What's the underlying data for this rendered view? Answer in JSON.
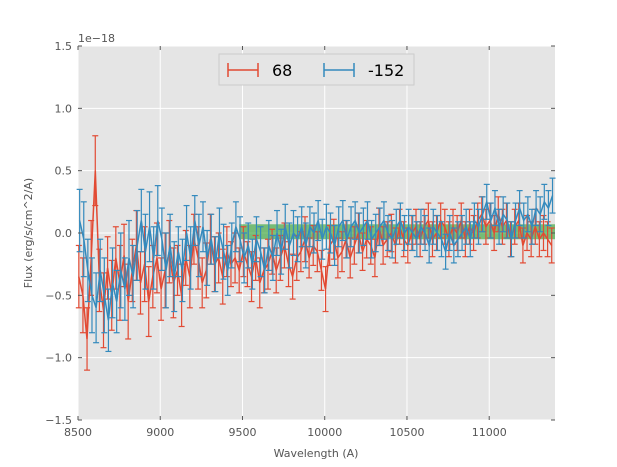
{
  "chart_data": {
    "type": "line",
    "title": "",
    "xlabel": "Wavelength (A)",
    "ylabel": "Flux (erg/s/cm^2/A)",
    "offset_label": "1e−18",
    "xlim": [
      8500,
      11400
    ],
    "ylim": [
      -1.5,
      1.5
    ],
    "x_ticks": [
      8500,
      9000,
      9500,
      10000,
      10500,
      11000
    ],
    "x_tick_labels": [
      "8500",
      "9000",
      "9500",
      "10000",
      "10500",
      "11000"
    ],
    "y_ticks": [
      -1.5,
      -1.0,
      -0.5,
      0.0,
      0.5,
      1.0,
      1.5
    ],
    "y_tick_labels": [
      "−1.5",
      "−1.0",
      "−0.5",
      "0.0",
      "0.5",
      "1.0",
      "1.5"
    ],
    "grid": true,
    "legend_position": "top-center",
    "band": {
      "x_range": [
        9480,
        11400
      ],
      "y_range": [
        -0.05,
        0.07
      ],
      "color": "#2ca02c"
    },
    "series": [
      {
        "name": "68",
        "color": "#e24a33",
        "x": [
          8505,
          8530,
          8555,
          8580,
          8605,
          8630,
          8655,
          8680,
          8705,
          8730,
          8755,
          8780,
          8805,
          8830,
          8855,
          8880,
          8905,
          8930,
          8955,
          8980,
          9005,
          9030,
          9055,
          9080,
          9105,
          9130,
          9155,
          9180,
          9205,
          9230,
          9255,
          9280,
          9305,
          9330,
          9355,
          9380,
          9405,
          9430,
          9455,
          9480,
          9505,
          9530,
          9555,
          9580,
          9605,
          9630,
          9655,
          9680,
          9705,
          9730,
          9755,
          9780,
          9805,
          9830,
          9855,
          9880,
          9905,
          9930,
          9955,
          9980,
          10005,
          10030,
          10055,
          10080,
          10105,
          10130,
          10155,
          10180,
          10205,
          10230,
          10255,
          10280,
          10305,
          10330,
          10355,
          10380,
          10405,
          10430,
          10455,
          10480,
          10505,
          10530,
          10555,
          10580,
          10605,
          10630,
          10655,
          10680,
          10705,
          10730,
          10755,
          10780,
          10805,
          10830,
          10855,
          10880,
          10905,
          10930,
          10955,
          10980,
          11005,
          11030,
          11055,
          11080,
          11105,
          11130,
          11155,
          11180,
          11205,
          11230,
          11255,
          11280,
          11305,
          11330,
          11355,
          11380
        ],
        "y": [
          -0.35,
          -0.5,
          -0.85,
          -0.2,
          0.5,
          -0.38,
          -0.62,
          -0.28,
          -0.5,
          -0.2,
          -0.4,
          -0.18,
          -0.55,
          -0.3,
          -0.1,
          -0.4,
          -0.25,
          -0.55,
          -0.35,
          -0.2,
          -0.45,
          -0.3,
          -0.15,
          -0.4,
          -0.3,
          -0.5,
          -0.2,
          -0.35,
          -0.05,
          -0.2,
          -0.4,
          -0.3,
          -0.05,
          -0.25,
          -0.2,
          -0.35,
          -0.15,
          -0.25,
          -0.2,
          -0.3,
          -0.15,
          -0.25,
          -0.35,
          -0.2,
          -0.4,
          -0.3,
          -0.25,
          -0.15,
          -0.3,
          -0.2,
          -0.1,
          -0.25,
          -0.35,
          -0.2,
          -0.15,
          -0.05,
          -0.2,
          -0.1,
          -0.15,
          -0.3,
          -0.45,
          -0.1,
          -0.05,
          -0.2,
          -0.15,
          -0.05,
          -0.2,
          -0.1,
          0.0,
          -0.15,
          -0.05,
          -0.1,
          -0.2,
          0.05,
          -0.1,
          -0.05,
          0.0,
          -0.1,
          0.05,
          -0.05,
          -0.1,
          0.0,
          0.05,
          -0.05,
          0.05,
          0.1,
          -0.05,
          0.0,
          0.1,
          0.05,
          -0.05,
          0.05,
          0.0,
          0.1,
          -0.05,
          0.05,
          0.0,
          0.1,
          0.15,
          0.05,
          0.1,
          0.0,
          0.15,
          0.05,
          0.1,
          -0.05,
          0.05,
          0.1,
          -0.1,
          0.0,
          -0.05,
          0.05,
          -0.05,
          0.0,
          -0.05,
          -0.1
        ],
        "err": [
          0.25,
          0.3,
          0.25,
          0.3,
          0.28,
          0.25,
          0.3,
          0.25,
          0.28,
          0.25,
          0.3,
          0.25,
          0.3,
          0.25,
          0.28,
          0.25,
          0.3,
          0.28,
          0.25,
          0.28,
          0.25,
          0.3,
          0.25,
          0.28,
          0.2,
          0.25,
          0.22,
          0.25,
          0.2,
          0.25,
          0.2,
          0.22,
          0.2,
          0.22,
          0.2,
          0.22,
          0.2,
          0.18,
          0.2,
          0.18,
          0.2,
          0.18,
          0.2,
          0.18,
          0.2,
          0.18,
          0.2,
          0.18,
          0.18,
          0.18,
          0.18,
          0.18,
          0.18,
          0.18,
          0.16,
          0.18,
          0.16,
          0.16,
          0.16,
          0.16,
          0.18,
          0.16,
          0.16,
          0.16,
          0.16,
          0.15,
          0.16,
          0.15,
          0.16,
          0.15,
          0.15,
          0.15,
          0.15,
          0.15,
          0.15,
          0.14,
          0.15,
          0.14,
          0.14,
          0.14,
          0.14,
          0.14,
          0.14,
          0.14,
          0.14,
          0.14,
          0.14,
          0.14,
          0.14,
          0.14,
          0.14,
          0.14,
          0.14,
          0.14,
          0.14,
          0.14,
          0.14,
          0.14,
          0.14,
          0.14,
          0.14,
          0.14,
          0.14,
          0.14,
          0.14,
          0.14,
          0.14,
          0.14,
          0.14,
          0.14,
          0.14,
          0.14,
          0.14,
          0.14,
          0.14,
          0.14
        ]
      },
      {
        "name": "-152",
        "color": "#348abd",
        "x": [
          8510,
          8535,
          8560,
          8585,
          8610,
          8635,
          8660,
          8685,
          8710,
          8735,
          8760,
          8785,
          8810,
          8835,
          8860,
          8885,
          8910,
          8935,
          8960,
          8985,
          9010,
          9035,
          9060,
          9085,
          9110,
          9135,
          9160,
          9185,
          9210,
          9235,
          9260,
          9285,
          9310,
          9335,
          9360,
          9385,
          9410,
          9435,
          9460,
          9485,
          9510,
          9535,
          9560,
          9585,
          9610,
          9635,
          9660,
          9685,
          9710,
          9735,
          9760,
          9785,
          9810,
          9835,
          9860,
          9885,
          9910,
          9935,
          9960,
          9985,
          10010,
          10035,
          10060,
          10085,
          10110,
          10135,
          10160,
          10185,
          10210,
          10235,
          10260,
          10285,
          10310,
          10335,
          10360,
          10385,
          10410,
          10435,
          10460,
          10485,
          10510,
          10535,
          10560,
          10585,
          10610,
          10635,
          10660,
          10685,
          10710,
          10735,
          10760,
          10785,
          10810,
          10835,
          10860,
          10885,
          10910,
          10935,
          10960,
          10985,
          11010,
          11035,
          11060,
          11085,
          11110,
          11135,
          11160,
          11185,
          11210,
          11235,
          11260,
          11285,
          11310,
          11335,
          11360,
          11385
        ],
        "y": [
          0.1,
          -0.05,
          -0.3,
          -0.5,
          -0.6,
          -0.3,
          -0.5,
          -0.7,
          -0.4,
          -0.55,
          -0.3,
          -0.45,
          -0.2,
          -0.35,
          -0.1,
          0.1,
          -0.15,
          0.05,
          -0.2,
          0.1,
          -0.05,
          -0.3,
          -0.1,
          -0.35,
          -0.15,
          -0.3,
          0.0,
          -0.2,
          0.1,
          -0.1,
          0.05,
          -0.2,
          -0.05,
          -0.25,
          0.0,
          -0.15,
          -0.3,
          -0.1,
          0.05,
          -0.05,
          -0.2,
          -0.1,
          -0.25,
          -0.05,
          -0.15,
          -0.3,
          -0.1,
          -0.2,
          0.0,
          -0.15,
          0.05,
          -0.1,
          0.0,
          -0.05,
          0.05,
          -0.1,
          0.05,
          0.0,
          0.1,
          -0.05,
          0.05,
          0.0,
          -0.1,
          0.05,
          0.1,
          -0.05,
          0.05,
          0.1,
          0.0,
          0.05,
          0.1,
          -0.05,
          0.0,
          0.05,
          0.1,
          0.0,
          -0.05,
          0.05,
          0.1,
          0.0,
          0.05,
          0.0,
          -0.05,
          0.05,
          0.0,
          -0.1,
          0.05,
          0.0,
          -0.05,
          -0.15,
          0.0,
          -0.1,
          -0.05,
          0.0,
          0.05,
          -0.05,
          0.1,
          0.05,
          0.15,
          0.25,
          0.1,
          0.2,
          0.05,
          0.15,
          0.1,
          -0.05,
          0.1,
          0.2,
          0.1,
          0.15,
          0.05,
          0.2,
          0.15,
          0.25,
          0.2,
          0.3
        ],
        "err": [
          0.25,
          0.3,
          0.25,
          0.3,
          0.28,
          0.25,
          0.3,
          0.25,
          0.28,
          0.25,
          0.3,
          0.25,
          0.3,
          0.25,
          0.28,
          0.25,
          0.3,
          0.28,
          0.25,
          0.28,
          0.25,
          0.3,
          0.25,
          0.28,
          0.2,
          0.25,
          0.22,
          0.25,
          0.2,
          0.25,
          0.2,
          0.22,
          0.2,
          0.22,
          0.2,
          0.22,
          0.2,
          0.18,
          0.2,
          0.18,
          0.2,
          0.18,
          0.2,
          0.18,
          0.2,
          0.18,
          0.2,
          0.18,
          0.18,
          0.18,
          0.18,
          0.18,
          0.18,
          0.18,
          0.16,
          0.18,
          0.16,
          0.16,
          0.16,
          0.16,
          0.18,
          0.16,
          0.16,
          0.16,
          0.16,
          0.15,
          0.16,
          0.15,
          0.16,
          0.15,
          0.15,
          0.15,
          0.15,
          0.15,
          0.15,
          0.14,
          0.15,
          0.14,
          0.14,
          0.14,
          0.14,
          0.14,
          0.14,
          0.14,
          0.14,
          0.14,
          0.14,
          0.14,
          0.14,
          0.14,
          0.14,
          0.14,
          0.14,
          0.14,
          0.14,
          0.14,
          0.14,
          0.14,
          0.14,
          0.14,
          0.14,
          0.14,
          0.14,
          0.14,
          0.14,
          0.14,
          0.14,
          0.14,
          0.14,
          0.14,
          0.14,
          0.14,
          0.14,
          0.14,
          0.14,
          0.14
        ]
      }
    ]
  }
}
